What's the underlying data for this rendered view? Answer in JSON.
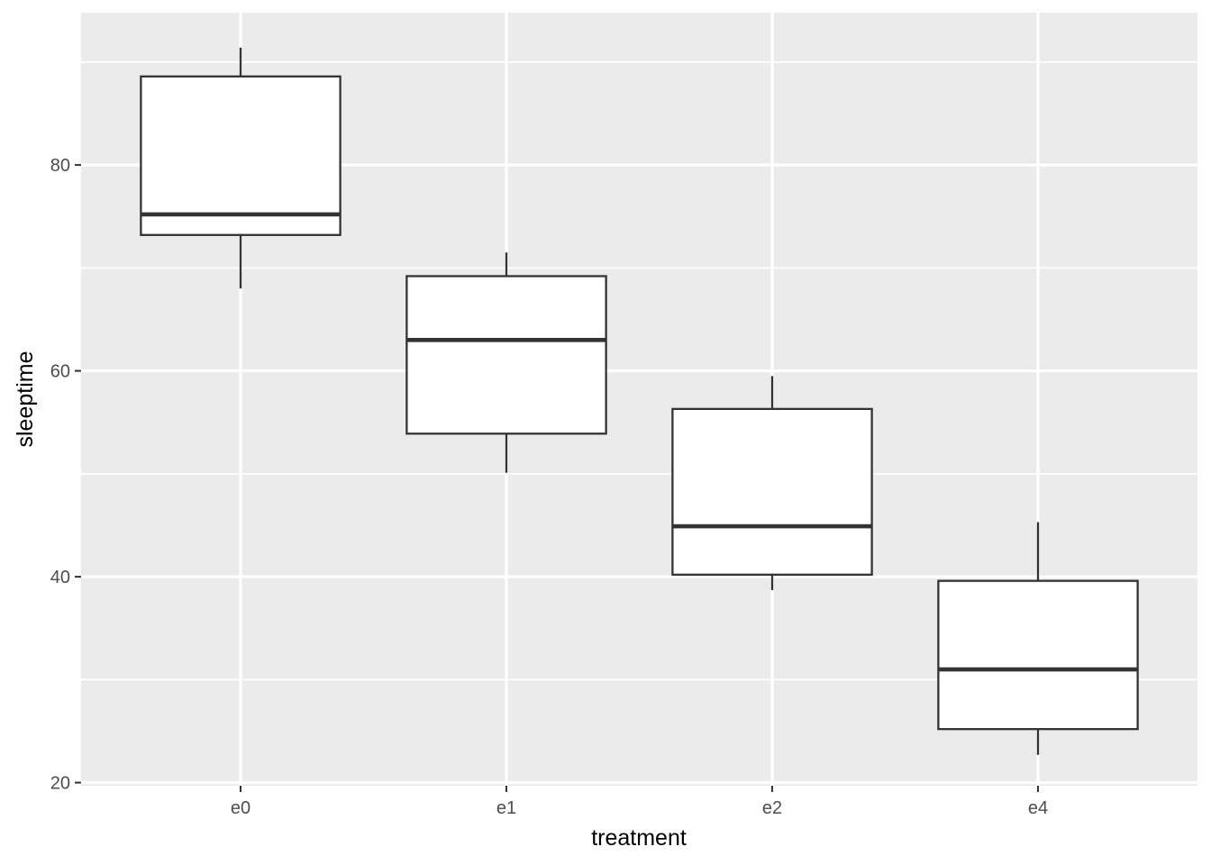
{
  "chart_data": {
    "type": "boxplot",
    "title": "",
    "xlabel": "treatment",
    "ylabel": "sleeptime",
    "categories": [
      "e0",
      "e1",
      "e2",
      "e4"
    ],
    "series": [
      {
        "category": "e0",
        "min": 68.0,
        "q1": 73.2,
        "median": 75.2,
        "q3": 88.6,
        "max": 91.4
      },
      {
        "category": "e1",
        "min": 50.1,
        "q1": 53.9,
        "median": 63.0,
        "q3": 69.2,
        "max": 71.5
      },
      {
        "category": "e2",
        "min": 38.7,
        "q1": 40.2,
        "median": 44.9,
        "q3": 56.3,
        "max": 59.5
      },
      {
        "category": "e4",
        "min": 22.7,
        "q1": 25.2,
        "median": 31.0,
        "q3": 39.6,
        "max": 45.3
      }
    ],
    "y_ticks": [
      20,
      40,
      60,
      80
    ],
    "y_minor_gridlines": [
      30,
      50,
      70,
      90
    ],
    "ylim": [
      19.7,
      94.8
    ],
    "grid": "major+minor",
    "legend": "none",
    "box_width_fraction": 0.75
  },
  "style": {
    "panel_bg": "#EBEBEB",
    "grid_color": "#FFFFFF",
    "box_stroke": "#333333",
    "box_fill": "#FFFFFF",
    "median_stroke": "#333333",
    "tick_mark_color": "#333333",
    "axis_text_color": "#4D4D4D",
    "axis_title_color": "#000000"
  }
}
